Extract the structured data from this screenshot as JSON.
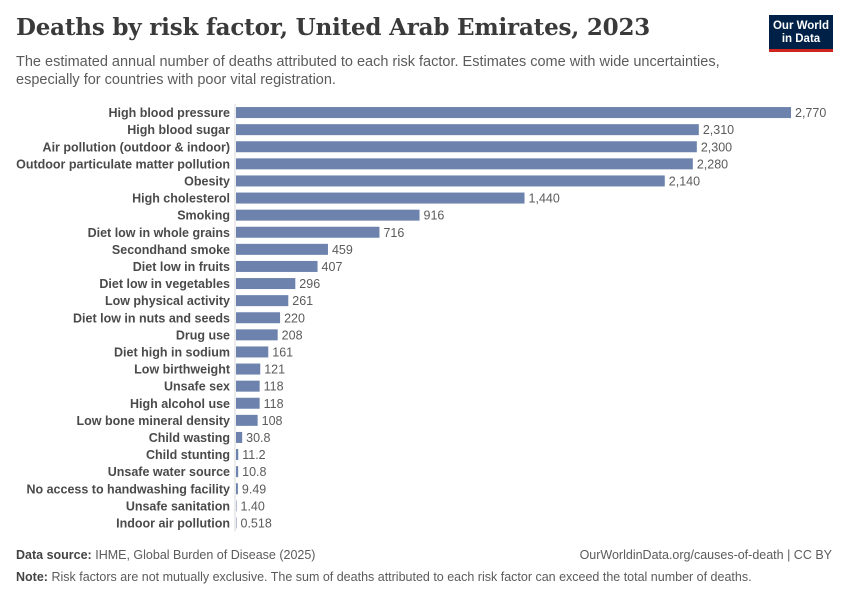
{
  "header": {
    "title": "Deaths by risk factor, United Arab Emirates, 2023",
    "subtitle": "The estimated annual number of deaths attributed to each risk factor. Estimates come with wide uncertainties, especially for countries with poor vital registration.",
    "logo_line1": "Our World",
    "logo_line2": "in Data"
  },
  "footer": {
    "source_label": "Data source:",
    "source_text": "IHME, Global Burden of Disease (2025)",
    "url": "OurWorldinData.org/causes-of-death | CC BY",
    "note_label": "Note:",
    "note_text": "Risk factors are not mutually exclusive. The sum of deaths attributed to each risk factor can exceed the total number of deaths."
  },
  "colors": {
    "bar": "#6d83ad",
    "logo_bg": "#002147",
    "logo_accent": "#ce261e"
  },
  "chart_data": {
    "type": "bar",
    "orientation": "horizontal",
    "categories": [
      "High blood pressure",
      "High blood sugar",
      "Air pollution (outdoor & indoor)",
      "Outdoor particulate matter pollution",
      "Obesity",
      "High cholesterol",
      "Smoking",
      "Diet low in whole grains",
      "Secondhand smoke",
      "Diet low in fruits",
      "Diet low in vegetables",
      "Low physical activity",
      "Diet low in nuts and seeds",
      "Drug use",
      "Diet high in sodium",
      "Low birthweight",
      "Unsafe sex",
      "High alcohol use",
      "Low bone mineral density",
      "Child wasting",
      "Child stunting",
      "Unsafe water source",
      "No access to handwashing facility",
      "Unsafe sanitation",
      "Indoor air pollution"
    ],
    "values": [
      2770,
      2310,
      2300,
      2280,
      2140,
      1440,
      916,
      716,
      459,
      407,
      296,
      261,
      220,
      208,
      161,
      121,
      118,
      118,
      108,
      30.8,
      11.2,
      10.8,
      9.49,
      1.4,
      0.518
    ],
    "labels": [
      "2,770",
      "2,310",
      "2,300",
      "2,280",
      "2,140",
      "1,440",
      "916",
      "716",
      "459",
      "407",
      "296",
      "261",
      "220",
      "208",
      "161",
      "121",
      "118",
      "118",
      "108",
      "30.8",
      "11.2",
      "10.8",
      "9.49",
      "1.40",
      "0.518"
    ],
    "xlim": [
      0,
      2770
    ],
    "grid": false,
    "legend": "none"
  }
}
